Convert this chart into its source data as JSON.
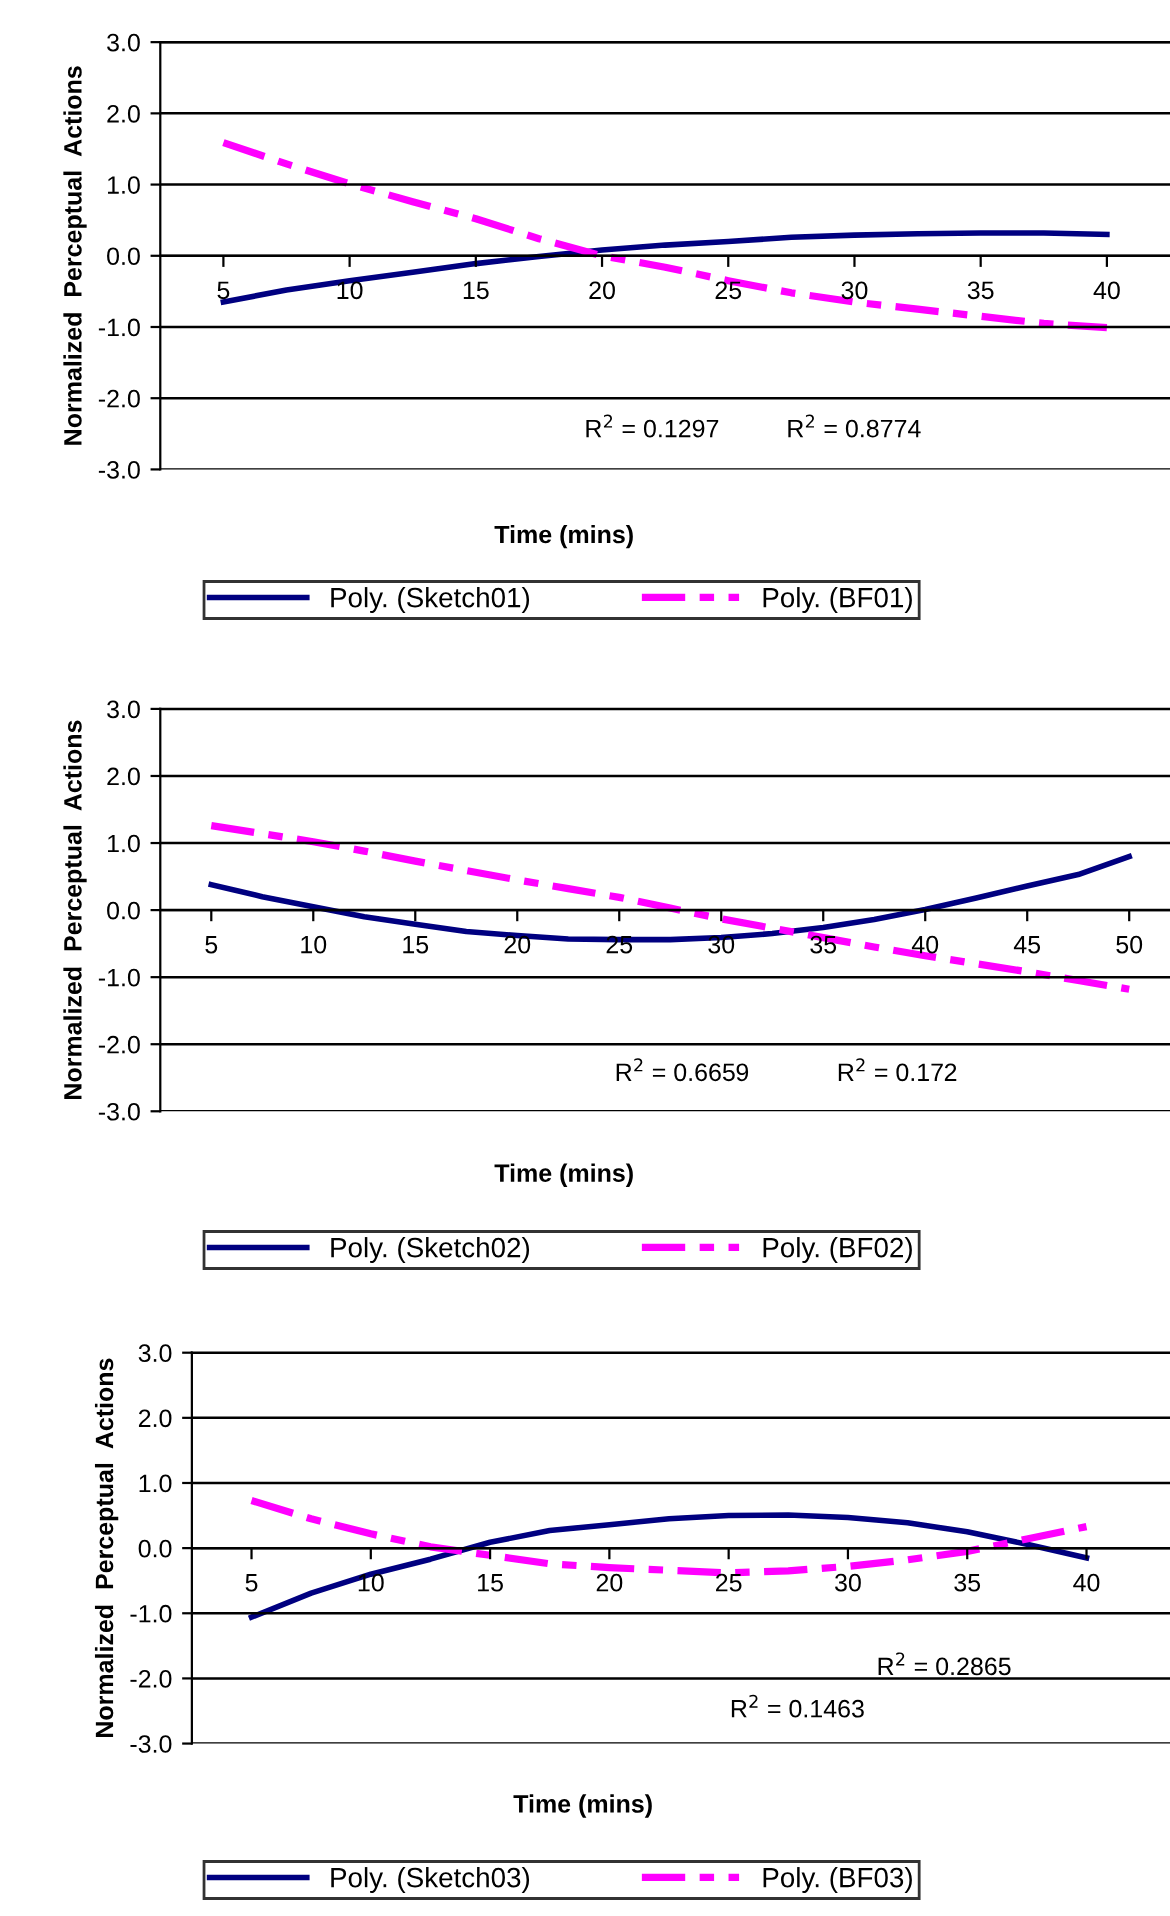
{
  "chart_data": [
    {
      "type": "line",
      "xlabel": "Time (mins)",
      "ylabel": "Normalized  Perceptual  Actions",
      "x": [
        5,
        7.5,
        10,
        12.5,
        15,
        17.5,
        20,
        22.5,
        25,
        27.5,
        30,
        32.5,
        35,
        37.5,
        40
      ],
      "series": [
        {
          "name": "Poly. (Sketch01)",
          "color": "#000080",
          "line_style": "solid",
          "values": [
            -0.65,
            -0.48,
            -0.35,
            -0.23,
            -0.11,
            -0.01,
            0.08,
            0.15,
            0.2,
            0.26,
            0.29,
            0.31,
            0.32,
            0.32,
            0.3
          ]
        },
        {
          "name": "Poly. (BF01)",
          "color": "#ff00ff",
          "line_style": "dashed",
          "values": [
            1.59,
            1.29,
            1.01,
            0.76,
            0.52,
            0.24,
            0.0,
            -0.16,
            -0.35,
            -0.52,
            -0.65,
            -0.75,
            -0.85,
            -0.95,
            -1.01
          ]
        }
      ],
      "annotations": [
        "R$^{2}$ = 0.1297",
        "R$^{2}$ = 0.8774"
      ],
      "xlim": [
        2.5,
        42.5
      ],
      "xticks": [
        5,
        10,
        15,
        20,
        25,
        30,
        35,
        40
      ],
      "ylim": [
        -3,
        3
      ],
      "yticks": [
        {
          "value": 3,
          "label": "3.0"
        },
        {
          "value": 2,
          "label": "2.0"
        },
        {
          "value": 1,
          "label": "1.0"
        },
        {
          "value": 0,
          "label": "0.0"
        },
        {
          "value": -1,
          "label": "-1.0"
        },
        {
          "value": -2,
          "label": "-2.0"
        },
        {
          "value": -3,
          "label": "-3.0"
        }
      ],
      "grid": "y",
      "legend": "bottom",
      "marker": "none"
    },
    {
      "type": "line",
      "xlabel": "Time (mins)",
      "ylabel": "Normalized  Perceptual  Actions",
      "x": [
        5,
        7.5,
        10,
        12.5,
        15,
        17.5,
        20,
        22.5,
        25,
        27.5,
        30,
        32.5,
        35,
        37.5,
        40,
        42.5,
        45,
        47.5,
        50
      ],
      "series": [
        {
          "name": "Poly. (Sketch02)",
          "color": "#000080",
          "line_style": "solid",
          "values": [
            0.38,
            0.2,
            0.05,
            -0.1,
            -0.21,
            -0.32,
            -0.38,
            -0.43,
            -0.44,
            -0.44,
            -0.41,
            -0.35,
            -0.26,
            -0.14,
            0.01,
            0.18,
            0.36,
            0.53,
            0.8
          ]
        },
        {
          "name": "Poly. (BF02)",
          "color": "#ff00ff",
          "line_style": "dashed",
          "values": [
            1.26,
            1.14,
            1.02,
            0.88,
            0.73,
            0.59,
            0.45,
            0.32,
            0.19,
            0.03,
            -0.13,
            -0.27,
            -0.41,
            -0.55,
            -0.68,
            -0.8,
            -0.92,
            -1.05,
            -1.18
          ]
        }
      ],
      "annotations": [
        "R$^{2}$ = 0.6659",
        "R$^{2}$ = 0.172"
      ],
      "xlim": [
        2.5,
        52
      ],
      "xticks": [
        5,
        10,
        15,
        20,
        25,
        30,
        35,
        40,
        45,
        50
      ],
      "ylim": [
        -3,
        3
      ],
      "yticks": [
        {
          "value": 3,
          "label": "3.0"
        },
        {
          "value": 2,
          "label": "2.0"
        },
        {
          "value": 1,
          "label": "1.0"
        },
        {
          "value": 0,
          "label": "0.0"
        },
        {
          "value": -1,
          "label": "-1.0"
        },
        {
          "value": -2,
          "label": "-2.0"
        },
        {
          "value": -3,
          "label": "-3.0"
        }
      ],
      "grid": "y",
      "legend": "bottom",
      "marker": "none"
    },
    {
      "type": "line",
      "xlabel": "Time (mins)",
      "ylabel": "Normalized  Perceptual  Actions",
      "x": [
        5,
        7.5,
        10,
        12.5,
        15,
        17.5,
        20,
        22.5,
        25,
        27.5,
        30,
        32.5,
        35,
        37.5,
        40
      ],
      "series": [
        {
          "name": "Poly. (Sketch03)",
          "color": "#000080",
          "line_style": "solid",
          "values": [
            -1.06,
            -0.69,
            -0.4,
            -0.17,
            0.09,
            0.27,
            0.36,
            0.45,
            0.5,
            0.51,
            0.47,
            0.39,
            0.25,
            0.06,
            -0.15
          ]
        },
        {
          "name": "Poly. (BF03)",
          "color": "#ff00ff",
          "line_style": "dashed",
          "values": [
            0.73,
            0.45,
            0.22,
            0.02,
            -0.11,
            -0.24,
            -0.3,
            -0.34,
            -0.38,
            -0.35,
            -0.28,
            -0.18,
            -0.05,
            0.14,
            0.33
          ]
        }
      ],
      "annotations": [
        "R$^{2}$ = 0.2865",
        "R$^{2}$ = 0.1463"
      ],
      "xlim": [
        2.5,
        43.5
      ],
      "xticks": [
        5,
        10,
        15,
        20,
        25,
        30,
        35,
        40
      ],
      "ylim": [
        -3,
        3
      ],
      "yticks": [
        {
          "value": 3,
          "label": "3.0"
        },
        {
          "value": 2,
          "label": "2.0"
        },
        {
          "value": 1,
          "label": "1.0"
        },
        {
          "value": 0,
          "label": "0.0"
        },
        {
          "value": -1,
          "label": "-1.0"
        },
        {
          "value": -2,
          "label": "-2.0"
        },
        {
          "value": -3,
          "label": "-3.0"
        }
      ],
      "grid": "y",
      "legend": "bottom",
      "marker": "none"
    }
  ]
}
